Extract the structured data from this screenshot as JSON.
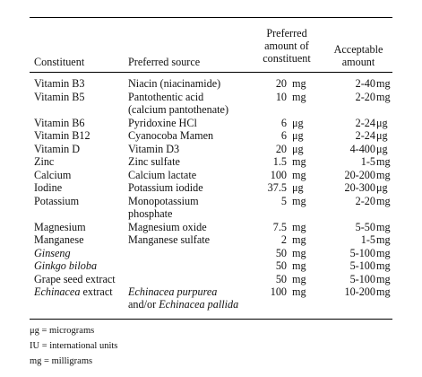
{
  "table": {
    "headers": {
      "constituent": "Constituent",
      "source": "Preferred source",
      "preferred_line1": "Preferred",
      "preferred_line2": "amount of",
      "preferred_line3": "constituent",
      "acceptable_line1": "Acceptable",
      "acceptable_line2": "amount"
    },
    "rows": [
      {
        "constituent": "Vitamin B3",
        "source": [
          "Niacin (niacinamide)"
        ],
        "pamt": "20",
        "punit": "mg",
        "aamt": "2-40",
        "aunit": "mg",
        "lines": 1
      },
      {
        "constituent": "Vitamin B5",
        "source": [
          "Pantothentic acid",
          "(calcium pantothenate)"
        ],
        "pamt": "10",
        "punit": "mg",
        "aamt": "2-20",
        "aunit": "mg",
        "lines": 2
      },
      {
        "constituent": "Vitamin B6",
        "source": [
          "Pyridoxine HCl"
        ],
        "pamt": "6",
        "punit": "μg",
        "aamt": "2-24",
        "aunit": "μg",
        "lines": 1
      },
      {
        "constituent": "Vitamin B12",
        "source": [
          "Cyanocoba Mamen"
        ],
        "pamt": "6",
        "punit": "μg",
        "aamt": "2-24",
        "aunit": "μg",
        "lines": 1
      },
      {
        "constituent": "Vitamin D",
        "source": [
          "Vitamin D3"
        ],
        "pamt": "20",
        "punit": "μg",
        "aamt": "4-400",
        "aunit": "μg",
        "lines": 1
      },
      {
        "constituent": "Zinc",
        "source": [
          "Zinc sulfate"
        ],
        "pamt": "1.5",
        "punit": "mg",
        "aamt": "1-5",
        "aunit": "mg",
        "lines": 1
      },
      {
        "constituent": "Calcium",
        "source": [
          "Calcium lactate"
        ],
        "pamt": "100",
        "punit": "mg",
        "aamt": "20-200",
        "aunit": "mg",
        "lines": 1
      },
      {
        "constituent": "Iodine",
        "source": [
          "Potassium iodide"
        ],
        "pamt": "37.5",
        "punit": "μg",
        "aamt": "20-300",
        "aunit": "μg",
        "lines": 1
      },
      {
        "constituent": "Potassium",
        "source": [
          "Monopotassium",
          "phosphate"
        ],
        "pamt": "5",
        "punit": "mg",
        "aamt": "2-20",
        "aunit": "mg",
        "lines": 2
      },
      {
        "constituent": "Magnesium",
        "source": [
          "Magnesium oxide"
        ],
        "pamt": "7.5",
        "punit": "mg",
        "aamt": "5-50",
        "aunit": "mg",
        "lines": 1
      },
      {
        "constituent": "Manganese",
        "source": [
          "Manganese sulfate"
        ],
        "pamt": "2",
        "punit": "mg",
        "aamt": "1-5",
        "aunit": "mg",
        "lines": 1
      },
      {
        "constituent": "Ginseng",
        "constituent_italic": true,
        "source": [
          ""
        ],
        "pamt": "50",
        "punit": "mg",
        "aamt": "5-100",
        "aunit": "mg",
        "lines": 1
      },
      {
        "constituent": "Ginkgo biloba",
        "constituent_italic": true,
        "source": [
          ""
        ],
        "pamt": "50",
        "punit": "mg",
        "aamt": "5-100",
        "aunit": "mg",
        "lines": 1
      },
      {
        "constituent": "Grape seed extract",
        "source": [
          ""
        ],
        "pamt": "50",
        "punit": "mg",
        "aamt": "5-100",
        "aunit": "mg",
        "lines": 1
      },
      {
        "constituent": "Echinacea extract",
        "constituent_italic_word": "Echinacea",
        "source": [
          "Echinacea purpurea",
          "and/or Echinacea pallida"
        ],
        "pamt": "100",
        "punit": "mg",
        "aamt": "10-200",
        "aunit": "mg",
        "lines": 2
      }
    ]
  },
  "notes": {
    "n1": "μg = micrograms",
    "n2": "IU = international units",
    "n3": "mg = milligrams"
  }
}
